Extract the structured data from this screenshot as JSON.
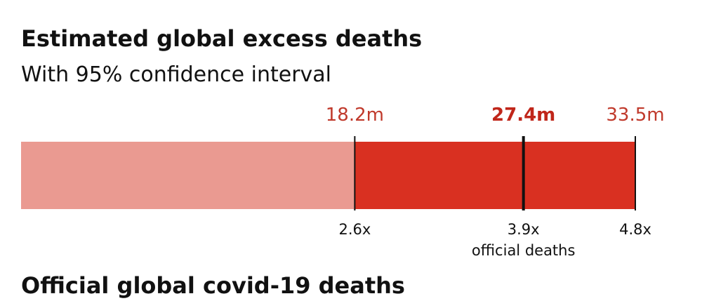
{
  "chart_data": {
    "type": "interval",
    "title": "Estimated global excess deaths",
    "subtitle": "With 95% confidence interval",
    "values": [
      18.2,
      27.4,
      33.5
    ],
    "value_labels": [
      "18.2m",
      "27.4m",
      "33.5m"
    ],
    "multiple_labels": [
      "2.6x",
      "3.9x",
      "4.8x"
    ],
    "multiple_note": "official deaths",
    "xlim": [
      0,
      33.5
    ],
    "colors": {
      "base": "#ea9a91",
      "interval": "#d93021"
    },
    "footer_title": "Official global covid-19 deaths"
  }
}
